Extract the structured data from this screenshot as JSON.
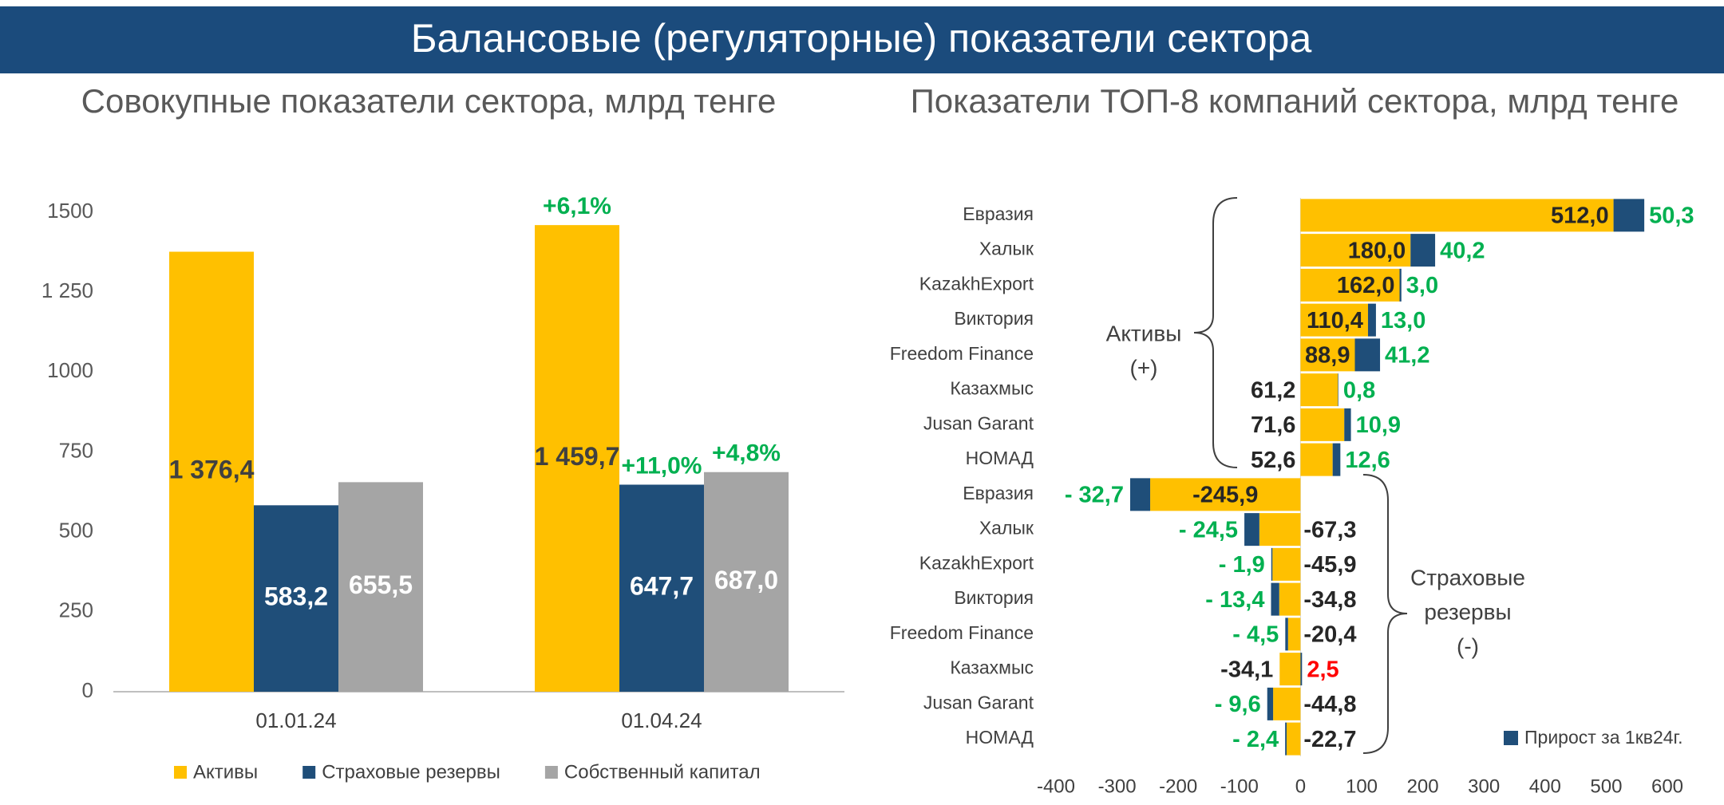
{
  "header": {
    "title": "Балансовые (регуляторные) показатели сектора"
  },
  "chart_data": [
    {
      "type": "bar",
      "title": "Совокупные показатели сектора, млрд тенге",
      "categories": [
        "01.01.24",
        "01.04.24"
      ],
      "series": [
        {
          "name": "Активы",
          "color": "#ffc000",
          "values": [
            1376.4,
            1459.7
          ],
          "value_labels": [
            "1 376,4",
            "1 459,7"
          ],
          "change_labels": [
            null,
            "+6,1%"
          ]
        },
        {
          "name": "Страховые резервы",
          "color": "#1f4e79",
          "values": [
            583.2,
            647.7
          ],
          "value_labels": [
            "583,2",
            "647,7"
          ],
          "change_labels": [
            null,
            "+11,0%"
          ]
        },
        {
          "name": "Собственный капитал",
          "color": "#a5a5a5",
          "values": [
            655.5,
            687.0
          ],
          "value_labels": [
            "655,5",
            "687,0"
          ],
          "change_labels": [
            null,
            "+4,8%"
          ]
        }
      ],
      "ylim": [
        0,
        1500
      ],
      "yticks": [
        0,
        250,
        500,
        750,
        1000,
        {
          "value": 1250,
          "label": "1 250"
        },
        1500
      ]
    },
    {
      "type": "hbar_stacked",
      "title": "Показатели ТОП-8 компаний сектора, млрд тенге",
      "categories": [
        "Евразия",
        "Халык",
        "KazakhExport",
        "Виктория",
        "Freedom Finance",
        "Казахмыс",
        "Jusan Garant",
        "НОМАД",
        "Евразия",
        "Халык",
        "KazakhExport",
        "Виктория",
        "Freedom Finance",
        "Казахмыс",
        "Jusan Garant",
        "НОМАД"
      ],
      "series": [
        {
          "color": "#ffc000",
          "values": [
            512.0,
            180.0,
            162.0,
            110.4,
            88.9,
            61.2,
            71.6,
            52.6,
            -245.9,
            -67.3,
            -45.9,
            -34.8,
            -20.4,
            -34.1,
            -44.8,
            -22.7
          ],
          "value_labels": [
            "512,0",
            "180,0",
            "162,0",
            "110,4",
            "88,9",
            "61,2",
            "71,6",
            "52,6",
            "-245,9",
            "-67,3",
            "-45,9",
            "-34,8",
            "-20,4",
            "-34,1",
            "-44,8",
            "-22,7"
          ]
        },
        {
          "name": "Прирост за 1кв24г.",
          "color": "#1f4e79",
          "values": [
            50.3,
            40.2,
            3.0,
            13.0,
            41.2,
            0.8,
            10.9,
            12.6,
            -32.7,
            -24.5,
            -1.9,
            -13.4,
            -4.5,
            2.5,
            -9.6,
            -2.4
          ],
          "value_labels": [
            "50,3",
            "40,2",
            "3,0",
            "13,0",
            "41,2",
            "0,8",
            "10,9",
            "12,6",
            "- 32,7",
            "- 24,5",
            "- 1,9",
            "- 13,4",
            "- 4,5",
            "2,5",
            "- 9,6",
            "- 2,4"
          ],
          "value_label_colors": [
            "#00b050",
            "#00b050",
            "#00b050",
            "#00b050",
            "#00b050",
            "#00b050",
            "#00b050",
            "#00b050",
            "#00b050",
            "#00b050",
            "#00b050",
            "#00b050",
            "#00b050",
            "#ff0000",
            "#00b050",
            "#00b050"
          ]
        }
      ],
      "annotations": [
        [
          "Активы",
          "(+)"
        ],
        [
          "Страховые",
          "резервы",
          "(-)"
        ]
      ],
      "xlim": [
        -400,
        600
      ],
      "xticks": [
        -400,
        -300,
        -200,
        -100,
        0,
        100,
        200,
        300,
        400,
        500,
        600
      ]
    }
  ]
}
